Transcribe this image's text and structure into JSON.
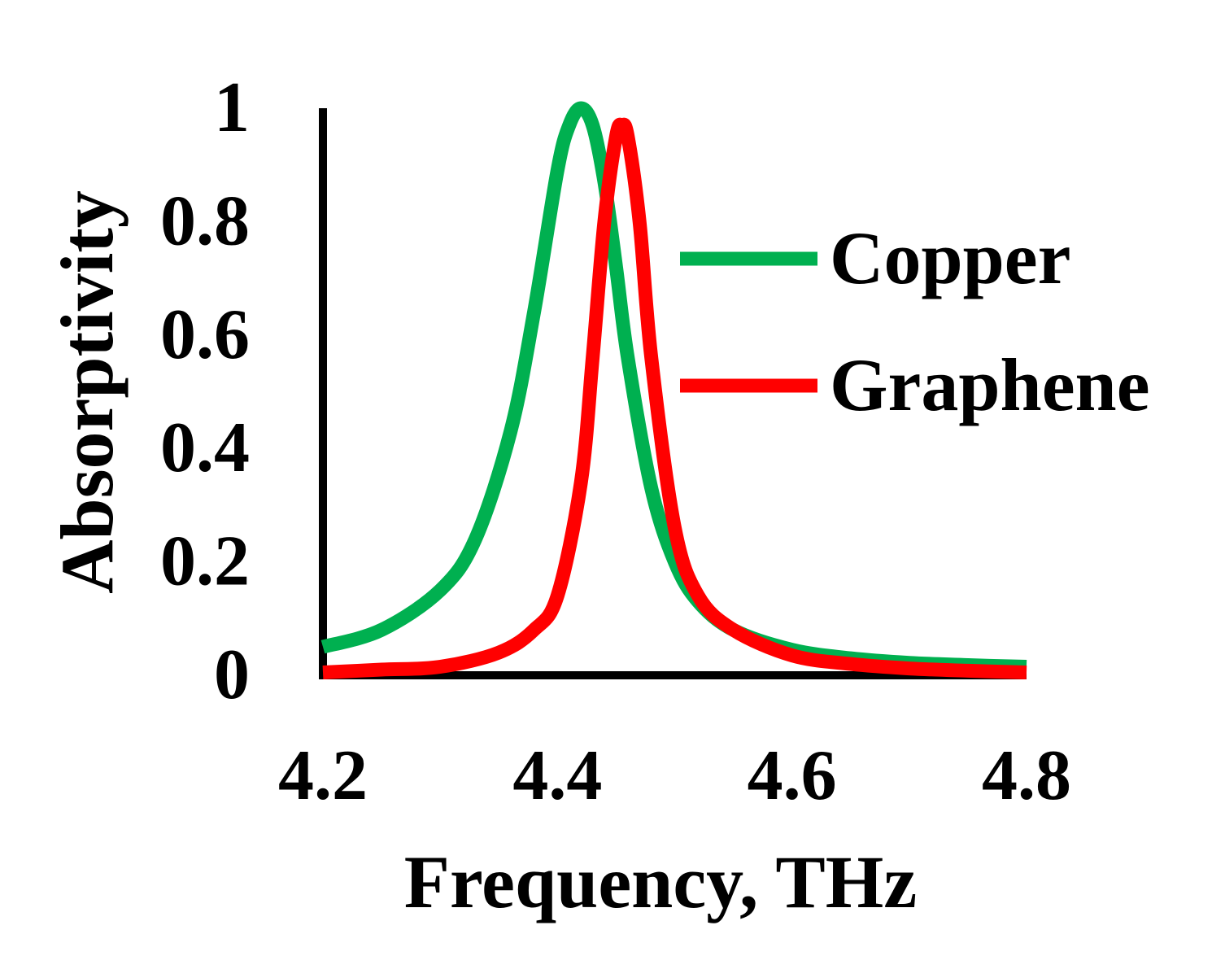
{
  "chart_data": {
    "type": "line",
    "xlabel": "Frequency, THz",
    "ylabel": "Absorptivity",
    "xlim": [
      4.2,
      4.8
    ],
    "ylim": [
      0,
      1
    ],
    "x_ticks": [
      "4.2",
      "4.4",
      "4.6",
      "4.8"
    ],
    "y_ticks": [
      "0",
      "0.2",
      "0.4",
      "0.6",
      "0.8",
      "1"
    ],
    "grid": false,
    "legend_position": "right",
    "series": [
      {
        "name": "Copper",
        "color": "#00b050",
        "x": [
          4.2,
          4.25,
          4.3,
          4.33,
          4.36,
          4.38,
          4.4,
          4.41,
          4.42,
          4.43,
          4.44,
          4.45,
          4.46,
          4.48,
          4.5,
          4.52,
          4.55,
          4.6,
          4.65,
          4.7,
          4.75,
          4.8
        ],
        "y": [
          0.05,
          0.08,
          0.15,
          0.24,
          0.43,
          0.64,
          0.89,
          0.97,
          1.0,
          0.97,
          0.87,
          0.72,
          0.56,
          0.33,
          0.2,
          0.13,
          0.08,
          0.045,
          0.03,
          0.022,
          0.018,
          0.015
        ]
      },
      {
        "name": "Graphene",
        "color": "#ff0000",
        "x": [
          4.2,
          4.25,
          4.3,
          4.35,
          4.38,
          4.4,
          4.42,
          4.43,
          4.44,
          4.45,
          4.455,
          4.46,
          4.47,
          4.48,
          4.5,
          4.52,
          4.55,
          4.6,
          4.65,
          4.7,
          4.75,
          4.8
        ],
        "y": [
          0.005,
          0.01,
          0.015,
          0.04,
          0.08,
          0.14,
          0.34,
          0.56,
          0.8,
          0.95,
          0.97,
          0.95,
          0.8,
          0.56,
          0.26,
          0.14,
          0.08,
          0.035,
          0.02,
          0.012,
          0.008,
          0.005
        ]
      }
    ]
  }
}
